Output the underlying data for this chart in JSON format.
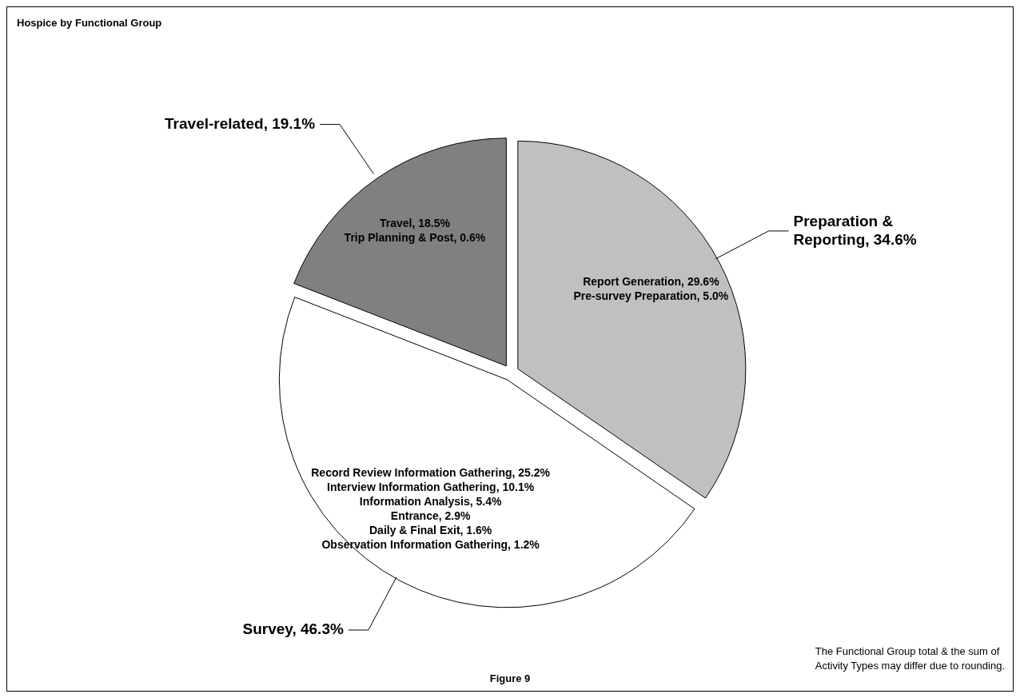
{
  "chart_data": {
    "type": "pie",
    "title": "Hospice by Functional Group",
    "categories": [
      "Preparation & Reporting",
      "Survey",
      "Travel-related"
    ],
    "values": [
      34.6,
      46.3,
      19.1
    ],
    "value_labels": [
      "34.6%",
      "46.3%",
      "19.1%"
    ],
    "colors": [
      "#c0c0c0",
      "#ffffff",
      "#808080"
    ],
    "annotations": [
      "Report Generation, 29.6%\nPre-survey Preparation, 5.0%",
      "Record Review Information Gathering, 25.2%\nInterview Information Gathering, 10.1%\nInformation Analysis, 5.4%\nEntrance, 2.9%\nDaily & Final Exit, 1.6%\nObservation Information Gathering, 1.2%",
      "Travel, 18.5%\nTrip Planning & Post, 0.6%",
      "Figure 9",
      "The Functional Group total & the sum of\nActivity Types may differ due to rounding."
    ],
    "legend": false
  }
}
